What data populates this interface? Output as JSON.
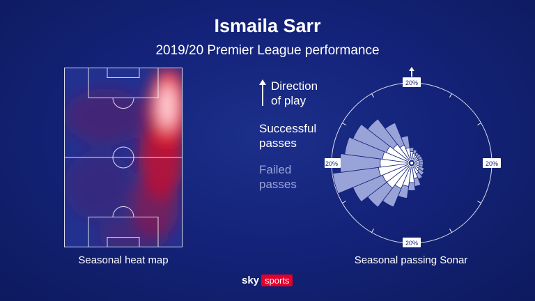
{
  "header": {
    "title": "Ismaila Sarr",
    "subtitle": "2019/20 Premier League performance"
  },
  "heatmap": {
    "caption": "Seasonal heat map"
  },
  "legend": {
    "direction_line1": "Direction",
    "direction_line2": "of play",
    "successful_line1": "Successful",
    "successful_line2": "passes",
    "failed_line1": "Failed",
    "failed_line2": "passes"
  },
  "sonar": {
    "caption": "Seasonal passing Sonar",
    "scale_label_top": "20%",
    "scale_label_right": "20%",
    "scale_label_bottom": "20%",
    "scale_label_left": "20%"
  },
  "branding": {
    "sky": "sky",
    "sports": "sports"
  },
  "colors": {
    "background": "#14237a",
    "pitch": "#22318f",
    "heat_red": "#e8102a",
    "successful": "#ffffff",
    "failed": "#9aa3d8"
  },
  "chart_data": {
    "type": "polar-bar",
    "scale_ring_value_percent": 20,
    "direction_of_play": "up",
    "sectors_count": 24,
    "sector_angles_deg": [
      0,
      15,
      30,
      45,
      60,
      75,
      90,
      105,
      120,
      135,
      150,
      165,
      180,
      195,
      210,
      225,
      240,
      255,
      270,
      285,
      300,
      315,
      330,
      345
    ],
    "series": [
      {
        "name": "Failed passes",
        "values": [
          3,
          2.5,
          2,
          2,
          2,
          2,
          2,
          2,
          2.5,
          3,
          3.5,
          5,
          6,
          8,
          11,
          13,
          15,
          19,
          17,
          16,
          15,
          13,
          10,
          6
        ]
      },
      {
        "name": "Successful passes",
        "values": [
          2,
          1.5,
          1.2,
          1,
          1,
          1,
          1,
          1,
          1.2,
          1.5,
          2,
          3,
          4,
          5,
          6,
          7,
          7,
          7.5,
          7,
          6.5,
          6,
          5,
          4,
          3
        ]
      }
    ]
  }
}
